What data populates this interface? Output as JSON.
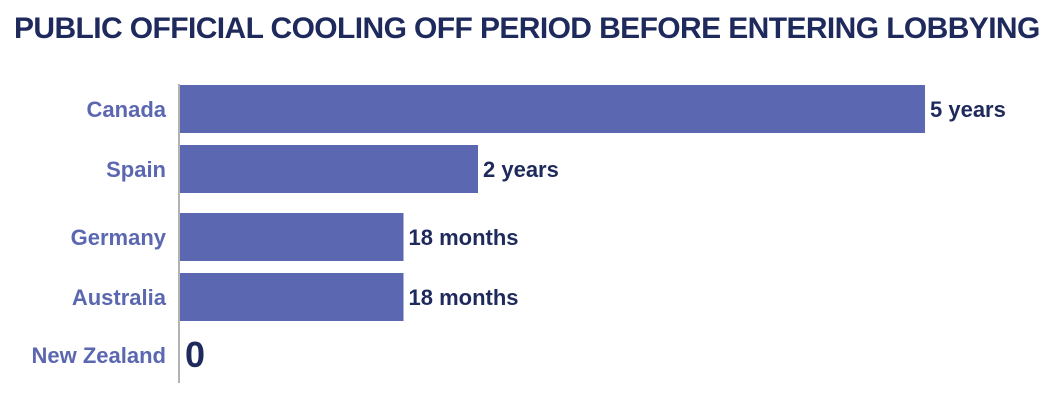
{
  "chart_data": {
    "type": "bar",
    "orientation": "horizontal",
    "title": "PUBLIC OFFICIAL COOLING OFF PERIOD BEFORE ENTERING LOBBYING",
    "unit": "months",
    "categories": [
      "Canada",
      "Spain",
      "Germany",
      "Australia",
      "New Zealand"
    ],
    "values": [
      60,
      24,
      18,
      18,
      0
    ],
    "value_labels": [
      "5 years",
      "2 years",
      "18 months",
      "18 months",
      "0"
    ],
    "xlim": [
      0,
      60
    ],
    "grid": false,
    "legend": "none"
  },
  "colors": {
    "bar": "#5b67b0",
    "category_text": "#5b67b0",
    "value_text": "#1f2a5c",
    "title": "#1f2a5c",
    "axis": "#9a9a9a"
  }
}
